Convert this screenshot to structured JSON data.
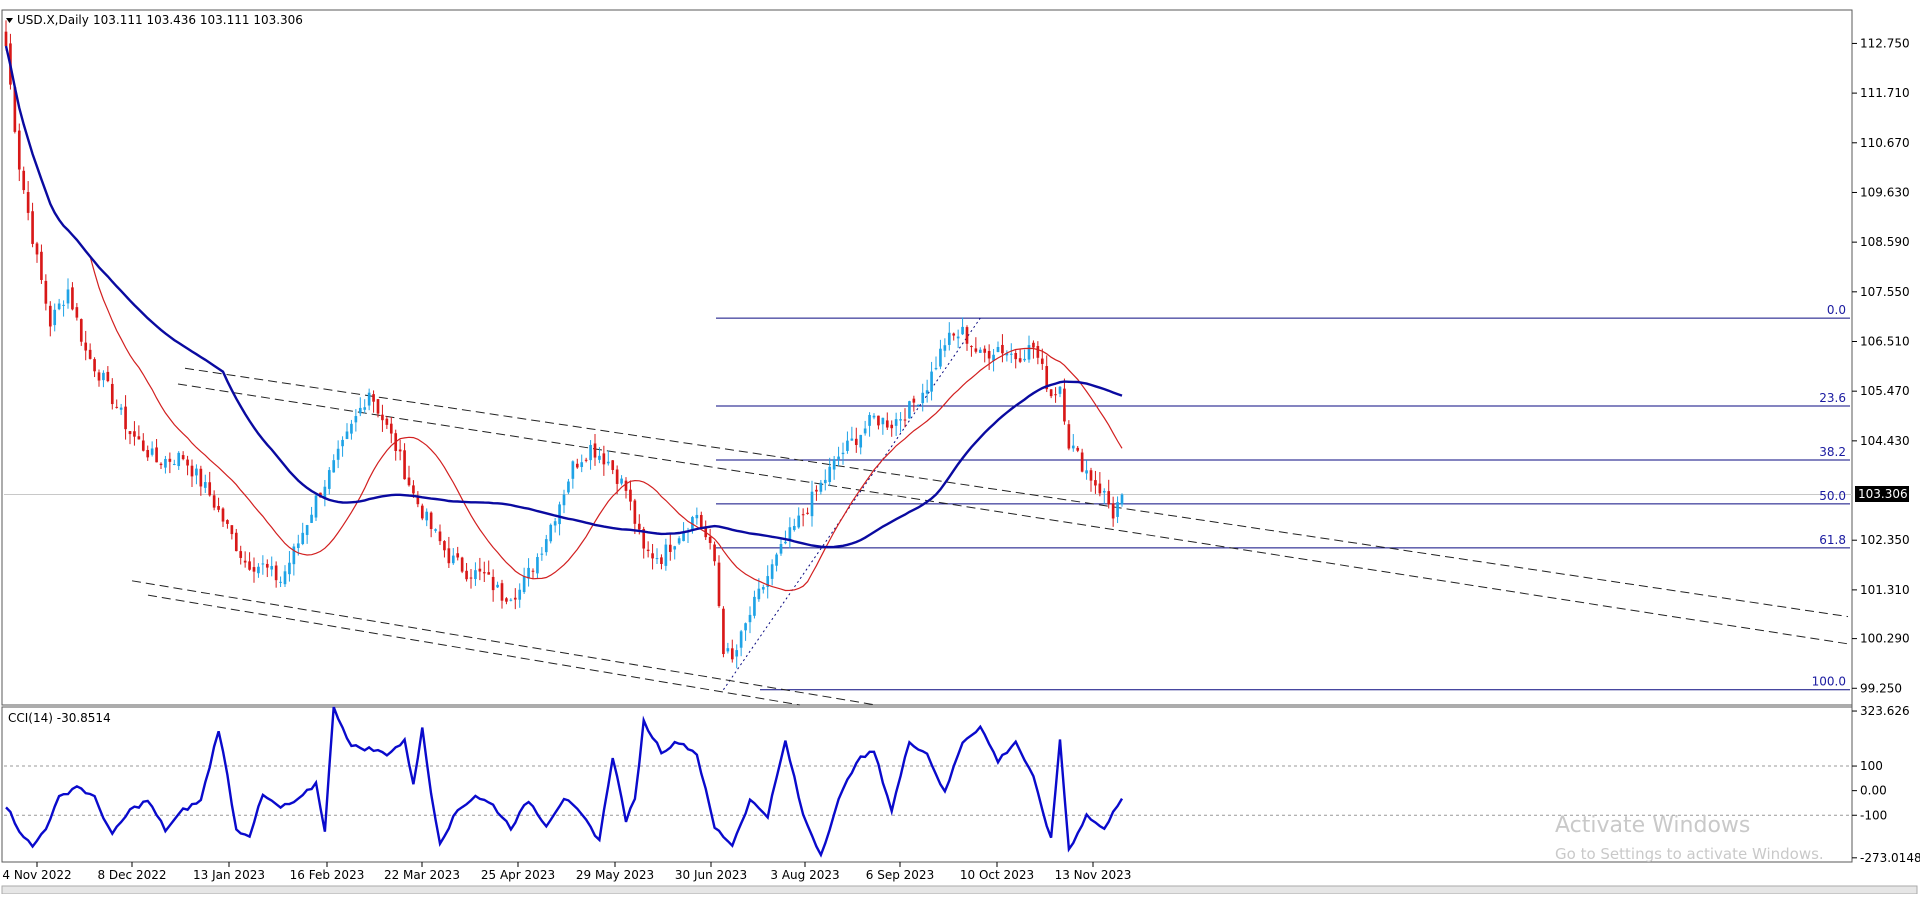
{
  "chart_data": [
    {
      "type": "candlestick",
      "title": "USD.X,Daily",
      "ohlc_label": "103.111 103.436 103.111 103.306",
      "current_price": 103.306,
      "current_price_label": "103.306",
      "y_ticks": [
        "112.750",
        "111.710",
        "110.670",
        "109.630",
        "108.590",
        "107.550",
        "106.510",
        "105.470",
        "104.430",
        "102.350",
        "101.310",
        "100.290",
        "99.250"
      ],
      "ylim": [
        98.9,
        113.45
      ],
      "x_ticks": [
        "4 Nov 2022",
        "8 Dec 2022",
        "13 Jan 2023",
        "16 Feb 2023",
        "22 Mar 2023",
        "25 Apr 2023",
        "29 May 2023",
        "30 Jun 2023",
        "3 Aug 2023",
        "6 Sep 2023",
        "10 Oct 2023",
        "13 Nov 2023"
      ],
      "close_anchors": [
        [
          0,
          112.7
        ],
        [
          3,
          110.2
        ],
        [
          7,
          108.2
        ],
        [
          10,
          106.9
        ],
        [
          14,
          107.6
        ],
        [
          18,
          106.3
        ],
        [
          22,
          105.7
        ],
        [
          28,
          104.6
        ],
        [
          34,
          104.0
        ],
        [
          40,
          104.1
        ],
        [
          46,
          103.3
        ],
        [
          50,
          102.6
        ],
        [
          54,
          101.9
        ],
        [
          58,
          101.8
        ],
        [
          62,
          101.5
        ],
        [
          66,
          102.3
        ],
        [
          70,
          103.2
        ],
        [
          74,
          103.9
        ],
        [
          78,
          104.7
        ],
        [
          82,
          105.5
        ],
        [
          85,
          104.9
        ],
        [
          88,
          104.3
        ],
        [
          92,
          103.3
        ],
        [
          96,
          102.6
        ],
        [
          100,
          102.0
        ],
        [
          104,
          101.7
        ],
        [
          108,
          101.6
        ],
        [
          112,
          101.2
        ],
        [
          116,
          101.3
        ],
        [
          120,
          102.0
        ],
        [
          124,
          102.9
        ],
        [
          128,
          103.9
        ],
        [
          132,
          104.3
        ],
        [
          136,
          104.0
        ],
        [
          140,
          103.4
        ],
        [
          144,
          102.1
        ],
        [
          148,
          102.0
        ],
        [
          152,
          102.5
        ],
        [
          156,
          102.9
        ],
        [
          160,
          101.9
        ],
        [
          162,
          100.1
        ],
        [
          164,
          99.8
        ],
        [
          168,
          100.8
        ],
        [
          172,
          101.6
        ],
        [
          176,
          102.3
        ],
        [
          180,
          102.9
        ],
        [
          184,
          103.5
        ],
        [
          188,
          104.1
        ],
        [
          192,
          104.5
        ],
        [
          196,
          104.9
        ],
        [
          200,
          104.8
        ],
        [
          204,
          105.1
        ],
        [
          208,
          105.6
        ],
        [
          212,
          106.5
        ],
        [
          216,
          106.7
        ],
        [
          220,
          106.2
        ],
        [
          224,
          106.4
        ],
        [
          228,
          106.2
        ],
        [
          232,
          106.4
        ],
        [
          236,
          105.4
        ],
        [
          238,
          105.6
        ],
        [
          240,
          104.4
        ],
        [
          244,
          103.8
        ],
        [
          248,
          103.3
        ],
        [
          250,
          102.9
        ],
        [
          252,
          103.306
        ]
      ],
      "ma_fast_color": "#d22020",
      "ma_slow_color": "#0a0aa0",
      "up_color": "#1fa3e6",
      "down_color": "#d81818",
      "fibonacci": {
        "high": 107.0,
        "low": 99.22,
        "levels": [
          {
            "label": "0.0",
            "value": 107.0
          },
          {
            "label": "23.6",
            "value": 105.16
          },
          {
            "label": "38.2",
            "value": 104.03
          },
          {
            "label": "50.0",
            "value": 103.11
          },
          {
            "label": "61.8",
            "value": 102.19
          },
          {
            "label": "100.0",
            "value": 99.22
          }
        ]
      }
    },
    {
      "type": "line",
      "title": "CCI(14) -30.8514",
      "y_ticks": [
        "323.626",
        "100",
        "0.00",
        "-100",
        "-273.0148"
      ],
      "ylim": [
        -290,
        340
      ],
      "levels": [
        100,
        -100
      ],
      "series_anchors": [
        [
          0,
          -60
        ],
        [
          3,
          -160
        ],
        [
          6,
          -230
        ],
        [
          9,
          -150
        ],
        [
          12,
          -30
        ],
        [
          16,
          20
        ],
        [
          20,
          -30
        ],
        [
          24,
          -180
        ],
        [
          28,
          -80
        ],
        [
          32,
          -40
        ],
        [
          36,
          -160
        ],
        [
          40,
          -80
        ],
        [
          44,
          -40
        ],
        [
          46,
          100
        ],
        [
          48,
          250
        ],
        [
          50,
          60
        ],
        [
          52,
          -160
        ],
        [
          55,
          -180
        ],
        [
          58,
          -20
        ],
        [
          62,
          -70
        ],
        [
          66,
          -40
        ],
        [
          70,
          30
        ],
        [
          72,
          -160
        ],
        [
          74,
          340
        ],
        [
          78,
          180
        ],
        [
          82,
          170
        ],
        [
          86,
          150
        ],
        [
          90,
          200
        ],
        [
          92,
          30
        ],
        [
          94,
          250
        ],
        [
          96,
          -10
        ],
        [
          98,
          -210
        ],
        [
          102,
          -80
        ],
        [
          106,
          -20
        ],
        [
          110,
          -60
        ],
        [
          114,
          -150
        ],
        [
          118,
          -40
        ],
        [
          122,
          -140
        ],
        [
          126,
          -30
        ],
        [
          130,
          -100
        ],
        [
          134,
          -200
        ],
        [
          137,
          140
        ],
        [
          140,
          -120
        ],
        [
          142,
          -40
        ],
        [
          144,
          280
        ],
        [
          148,
          160
        ],
        [
          152,
          200
        ],
        [
          156,
          150
        ],
        [
          160,
          -150
        ],
        [
          164,
          -220
        ],
        [
          168,
          -40
        ],
        [
          172,
          -100
        ],
        [
          176,
          200
        ],
        [
          180,
          -100
        ],
        [
          184,
          -260
        ],
        [
          188,
          -40
        ],
        [
          192,
          120
        ],
        [
          196,
          160
        ],
        [
          200,
          -80
        ],
        [
          204,
          200
        ],
        [
          208,
          150
        ],
        [
          212,
          -10
        ],
        [
          216,
          200
        ],
        [
          220,
          260
        ],
        [
          224,
          120
        ],
        [
          228,
          200
        ],
        [
          232,
          50
        ],
        [
          236,
          -200
        ],
        [
          238,
          210
        ],
        [
          240,
          -240
        ],
        [
          244,
          -100
        ],
        [
          248,
          -160
        ],
        [
          250,
          -80
        ],
        [
          252,
          -30.85
        ]
      ]
    }
  ],
  "watermark": {
    "title": "Activate Windows",
    "subtitle": "Go to Settings to activate Windows."
  }
}
